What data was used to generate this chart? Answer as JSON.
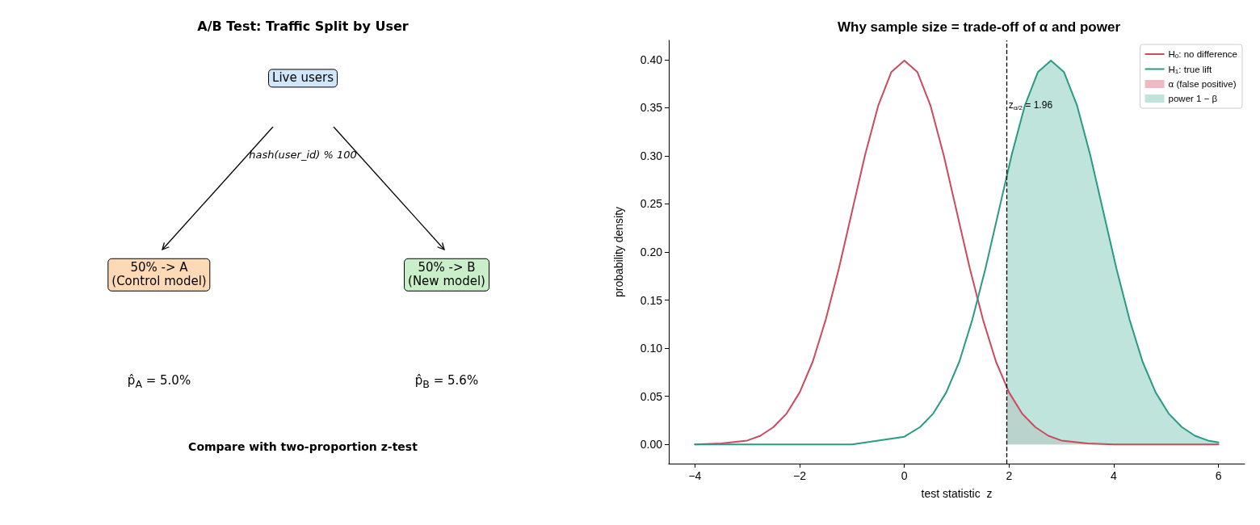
{
  "chart_data": [
    {
      "type": "other",
      "title": "A/B Test: Traffic Split by User",
      "annotations": [
        "Live users",
        "hash(user_id) % 100",
        "50% -> A\n(Control model)",
        "50% -> B\n(New model)",
        "p̂$_{A}$ = 5.0%",
        "p̂$_{B}$ = 5.6%",
        "Compare with two-proportion z-test"
      ]
    },
    {
      "type": "line",
      "title": "Why sample size = trade-off of α and power",
      "xlabel": "test statistic  z",
      "ylabel": "probability density",
      "xlim": [
        -4.5,
        6.5
      ],
      "xticks": [
        {
          "value": -4,
          "label": "−4"
        },
        {
          "value": -2,
          "label": "−2"
        },
        0,
        2,
        4,
        6
      ],
      "ylim": [
        -0.02,
        0.42
      ],
      "yticks": [
        {
          "value": 0,
          "label": "0.00"
        },
        0.05,
        {
          "value": 0.1,
          "label": "0.10"
        },
        0.15,
        {
          "value": 0.2,
          "label": "0.20"
        },
        0.25,
        {
          "value": 0.3,
          "label": "0.30"
        },
        0.35,
        {
          "value": 0.4,
          "label": "0.40"
        }
      ],
      "grid": false,
      "legend": "top right",
      "marker": "none",
      "line_style": "solid",
      "series": [
        {
          "name": "H$_{0}$: no difference",
          "color": "#cc4a5e",
          "x": [
            -4,
            -3.5,
            -3,
            -2.75,
            -2.5,
            -2.25,
            -2,
            -1.75,
            -1.5,
            -1.25,
            -1,
            -0.75,
            -0.5,
            -0.25,
            0,
            0.25,
            0.5,
            0.75,
            1,
            1.25,
            1.5,
            1.75,
            2,
            2.25,
            2.5,
            2.75,
            3,
            3.5,
            4,
            5,
            6
          ],
          "values": [
            0.0,
            0.001,
            0.004,
            0.009,
            0.018,
            0.032,
            0.054,
            0.086,
            0.13,
            0.183,
            0.242,
            0.301,
            0.352,
            0.387,
            0.399,
            0.387,
            0.352,
            0.301,
            0.242,
            0.183,
            0.13,
            0.086,
            0.054,
            0.032,
            0.018,
            0.009,
            0.004,
            0.001,
            0.0,
            0.0,
            0.0
          ]
        },
        {
          "name": "H$_{1}$: true lift",
          "color": "#2a9a86",
          "x": [
            -4,
            -2,
            -1,
            0,
            0.3,
            0.55,
            0.8,
            1.05,
            1.3,
            1.55,
            1.8,
            2.05,
            2.3,
            2.55,
            2.8,
            3.05,
            3.3,
            3.55,
            3.8,
            4.05,
            4.3,
            4.55,
            4.8,
            5.05,
            5.3,
            5.55,
            5.8,
            6
          ],
          "values": [
            0.0,
            0.0,
            0.0,
            0.008,
            0.018,
            0.032,
            0.054,
            0.086,
            0.13,
            0.183,
            0.242,
            0.301,
            0.352,
            0.387,
            0.399,
            0.387,
            0.352,
            0.301,
            0.242,
            0.183,
            0.13,
            0.086,
            0.054,
            0.032,
            0.018,
            0.009,
            0.004,
            0.002
          ]
        },
        {
          "type": "area",
          "name": "α (false positive)",
          "color": "#e8a3b0",
          "x": [
            1.96,
            2,
            2.25,
            2.5,
            2.75,
            3,
            3.5,
            4,
            5,
            6
          ],
          "values": [
            0.058,
            0.054,
            0.032,
            0.018,
            0.009,
            0.004,
            0.001,
            0.0,
            0.0,
            0.0
          ]
        },
        {
          "type": "area",
          "name": "power 1 − β",
          "color": "#a8dbd0",
          "x": [
            1.96,
            2.05,
            2.3,
            2.55,
            2.8,
            3.05,
            3.3,
            3.55,
            3.8,
            4.05,
            4.3,
            4.55,
            4.8,
            5.05,
            5.3,
            5.55,
            5.8,
            6
          ],
          "values": [
            0.28,
            0.301,
            0.352,
            0.387,
            0.399,
            0.387,
            0.352,
            0.301,
            0.242,
            0.183,
            0.13,
            0.086,
            0.054,
            0.032,
            0.018,
            0.009,
            0.004,
            0.002
          ]
        }
      ],
      "ref_lines": [
        {
          "axis": "x",
          "value": 1.96,
          "label": "z$_{α/2}$ = 1.96",
          "color": "#000000",
          "line_style": "dashed"
        }
      ]
    }
  ]
}
